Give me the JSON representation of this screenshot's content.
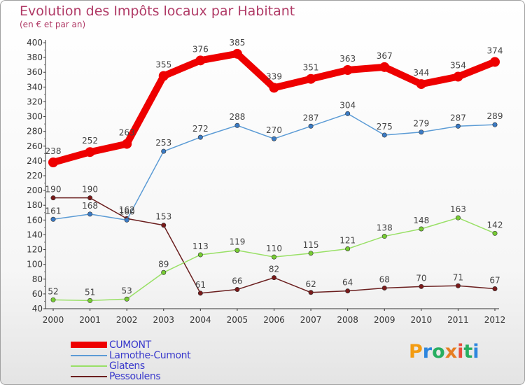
{
  "title": "Evolution des Impôts locaux par Habitant",
  "subtitle": "(en € et par an)",
  "logo_text": "Proxiti",
  "logo_colors": [
    "#f39c12",
    "#2e86de",
    "#27ae60",
    "#e67e22",
    "#e74c3c",
    "#27ae60",
    "#2e86de"
  ],
  "chart_data": {
    "type": "line",
    "x": [
      "2000",
      "2001",
      "2002",
      "2003",
      "2004",
      "2005",
      "2006",
      "2007",
      "2008",
      "2009",
      "2010",
      "2011",
      "2012"
    ],
    "ylim": [
      40,
      400
    ],
    "yticks": [
      40,
      60,
      80,
      100,
      120,
      140,
      160,
      180,
      200,
      220,
      240,
      260,
      280,
      300,
      320,
      340,
      360,
      380,
      400
    ],
    "grid": false,
    "series": [
      {
        "name": "CUMONT",
        "color": "#ee0000",
        "thick": true,
        "values": [
          238,
          252,
          263,
          355,
          376,
          385,
          339,
          351,
          363,
          367,
          344,
          354,
          374
        ],
        "labels": [
          "238",
          "252",
          "263",
          "355",
          "376",
          "385",
          "339",
          "351",
          "363",
          "367",
          "344",
          "354",
          "374"
        ]
      },
      {
        "name": "Lamothe-Cumont",
        "color": "#5b9bd5",
        "dot": "#3b7bc5",
        "values": [
          161,
          168,
          160,
          253,
          272,
          288,
          270,
          287,
          304,
          275,
          279,
          287,
          289
        ],
        "labels": [
          "161",
          "168",
          "160",
          "253",
          "272",
          "288",
          "270",
          "287",
          "304",
          "275",
          "279",
          "287",
          "289"
        ]
      },
      {
        "name": "Glatens",
        "color": "#99e066",
        "dot": "#77cc33",
        "values": [
          52,
          51,
          53,
          89,
          113,
          119,
          110,
          115,
          121,
          138,
          148,
          163,
          142
        ],
        "labels": [
          "52",
          "51",
          "53",
          "89",
          "113",
          "119",
          "110",
          "115",
          "121",
          "138",
          "148",
          "163",
          "142"
        ]
      },
      {
        "name": "Pessoulens",
        "color": "#6b1f1f",
        "dot": "#7a1a1a",
        "values": [
          190,
          190,
          162,
          153,
          61,
          66,
          82,
          62,
          64,
          68,
          70,
          71,
          67
        ],
        "labels": [
          "190",
          "190",
          "162",
          "153",
          "61",
          "66",
          "82",
          "62",
          "64",
          "68",
          "70",
          "71",
          "67"
        ]
      }
    ]
  }
}
